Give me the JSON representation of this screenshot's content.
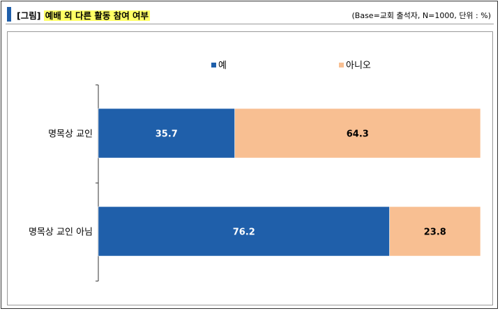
{
  "header": {
    "title_prefix": "[그림]",
    "title_main": "예배 외 다른 활동 참여 여부",
    "note": "(Base=교회 출석자, N=1000, 단위 : %)"
  },
  "colors": {
    "accent": "#1f5faa",
    "series_yes": "#1f5faa",
    "series_no": "#f8bf92",
    "title_highlight": "#ffff66"
  },
  "chart_data": {
    "type": "bar",
    "orientation": "horizontal",
    "stacked": true,
    "categories": [
      "명목상 교인",
      "명목상 교인 아님"
    ],
    "series": [
      {
        "name": "예",
        "values": [
          35.7,
          76.2
        ]
      },
      {
        "name": "아니오",
        "values": [
          64.3,
          23.8
        ]
      }
    ],
    "xlim": [
      0,
      100
    ],
    "legend": "top-center",
    "grid": false
  }
}
